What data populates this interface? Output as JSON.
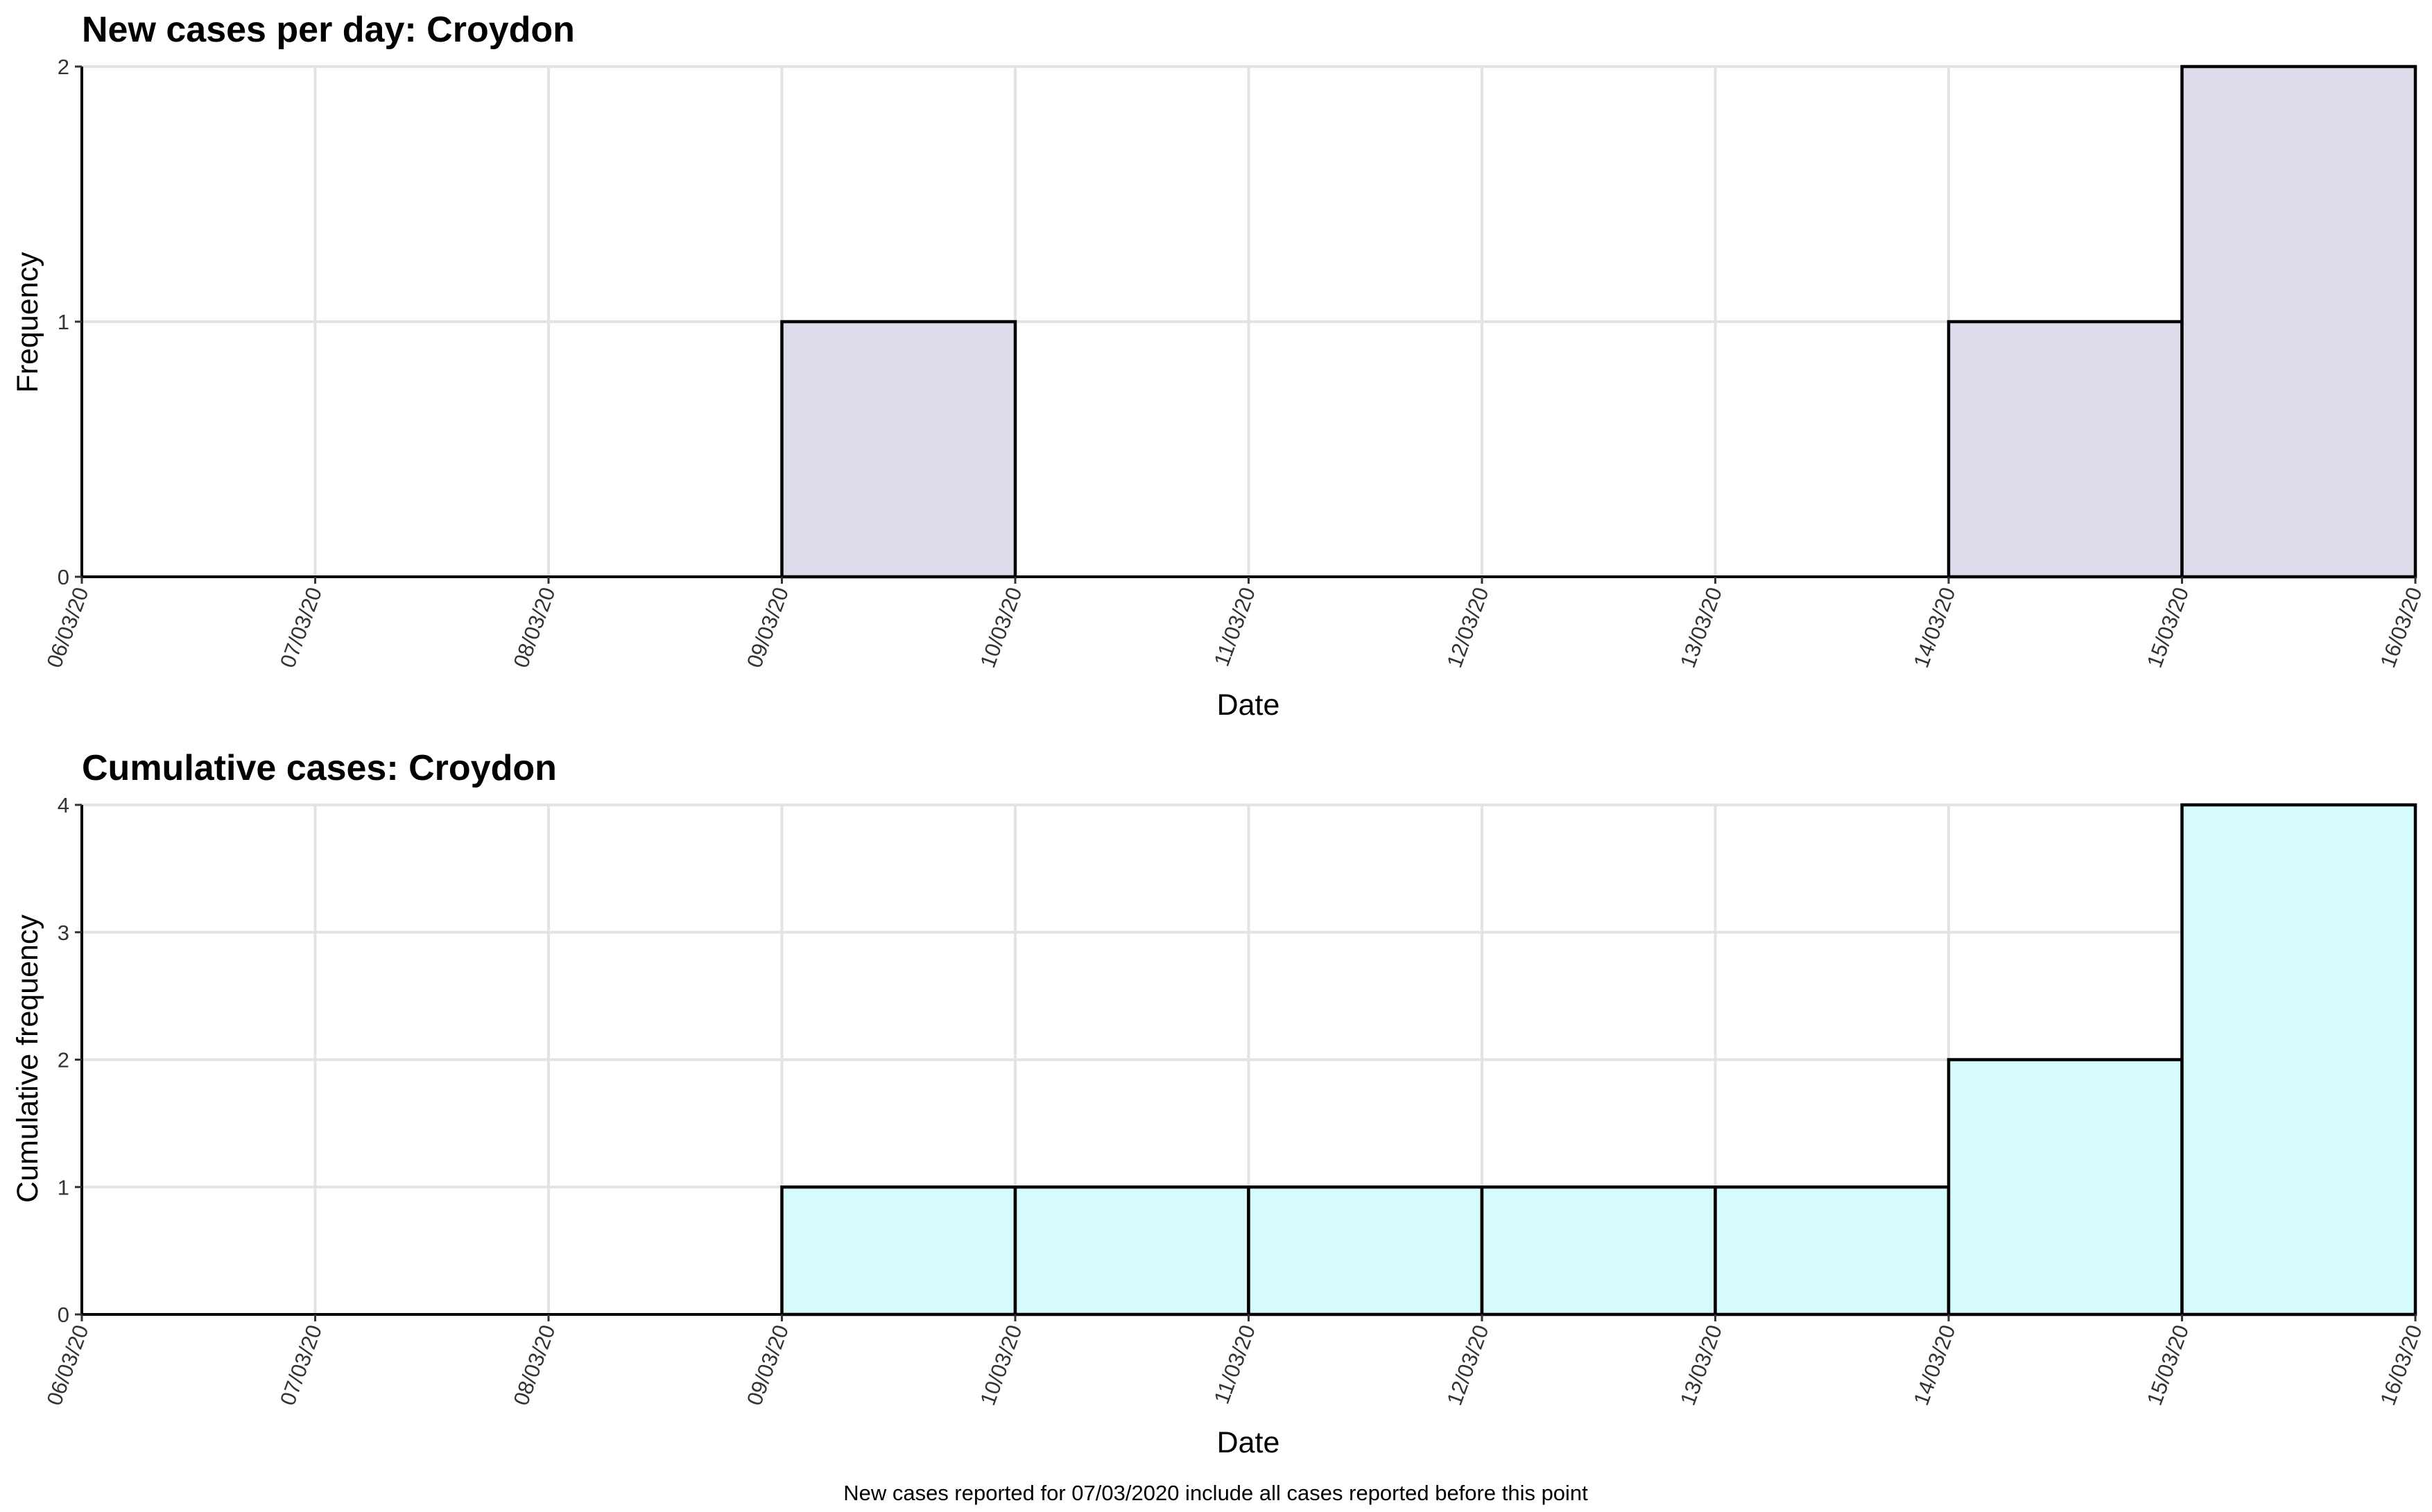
{
  "chart_data": [
    {
      "type": "bar",
      "title": "New cases per day: Croydon",
      "xlabel": "Date",
      "ylabel": "Frequency",
      "x_ticks": [
        "06/03/20",
        "07/03/20",
        "08/03/20",
        "09/03/20",
        "10/03/20",
        "11/03/20",
        "12/03/20",
        "13/03/20",
        "14/03/20",
        "15/03/20",
        "16/03/20"
      ],
      "values": [
        0,
        0,
        0,
        1,
        0,
        0,
        0,
        0,
        1,
        2
      ],
      "y_ticks": [
        0,
        1,
        2
      ],
      "ylim": [
        0,
        2
      ],
      "fill": "#e0dbea",
      "grid": true
    },
    {
      "type": "bar",
      "title": "Cumulative cases: Croydon",
      "xlabel": "Date",
      "ylabel": "Cumulative frequency",
      "x_ticks": [
        "06/03/20",
        "07/03/20",
        "08/03/20",
        "09/03/20",
        "10/03/20",
        "11/03/20",
        "12/03/20",
        "13/03/20",
        "14/03/20",
        "15/03/20",
        "16/03/20"
      ],
      "values": [
        0,
        0,
        0,
        1,
        1,
        1,
        1,
        1,
        2,
        4
      ],
      "y_ticks": [
        0,
        1,
        2,
        3,
        4
      ],
      "ylim": [
        0,
        4
      ],
      "fill": "#d5fbfd",
      "grid": true
    }
  ],
  "caption": "New cases reported for 07/03/2020 include all cases reported before this point"
}
